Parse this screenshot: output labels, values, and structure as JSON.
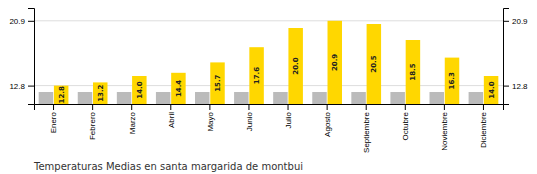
{
  "chart_data": {
    "type": "bar",
    "title": "Temperaturas Medias en santa margarida de montbui",
    "categories": [
      "Enero",
      "Febrero",
      "Marzo",
      "Abril",
      "Mayo",
      "Junio",
      "Julio",
      "Agosto",
      "Septiembre",
      "Octubre",
      "Noviembre",
      "Diciembre"
    ],
    "series": [
      {
        "color": "#BBBBBB",
        "values": [
          12.0,
          12.0,
          12.0,
          12.0,
          12.0,
          12.0,
          12.0,
          12.0,
          12.0,
          12.0,
          12.0,
          12.0
        ]
      },
      {
        "color": "#FFD700",
        "values": [
          12.8,
          13.2,
          14.0,
          14.4,
          15.7,
          17.6,
          20.0,
          20.9,
          20.5,
          18.5,
          16.3,
          14.0
        ],
        "data_labels": true,
        "value_labels": [
          "12.8",
          "13.2",
          "14.0",
          "14.4",
          "15.7",
          "17.6",
          "20.0",
          "20.9",
          "20.5",
          "18.5",
          "16.3",
          "14.0"
        ]
      }
    ],
    "ylim": [
      10.5,
      22.5
    ],
    "yticks": [
      12.8,
      20.9
    ],
    "y2lim": [
      10.5,
      22.5
    ],
    "y2ticks": [
      12.8,
      20.9
    ],
    "grid": true
  }
}
